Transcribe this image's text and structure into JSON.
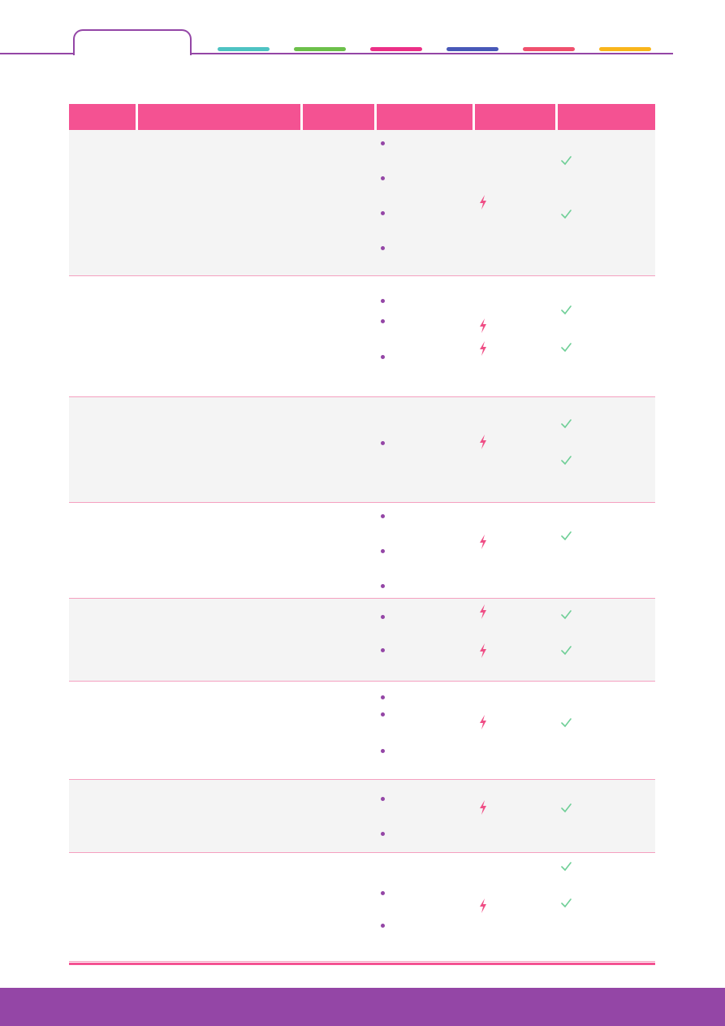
{
  "colors": {
    "purple": "#9446a6",
    "header_pink": "#f45292",
    "row_divider": "#f4a0c0",
    "row_shade": "#f4f4f4",
    "bolt": "#ef4f86",
    "check": "#6fcf97",
    "tab_colors": [
      "#4ec3c3",
      "#6cc04a",
      "#ec2f87",
      "#4858b8",
      "#f0506e",
      "#f9b51b"
    ]
  },
  "icons": {
    "bullet": "bullet-dot-icon",
    "bolt": "lightning-bolt-icon",
    "check": "checkmark-icon"
  },
  "table": {
    "headers": [
      "",
      "",
      "",
      "",
      "",
      ""
    ],
    "rows": [
      {
        "shaded": true,
        "bullets": 4,
        "bolts": 1,
        "checks": 2
      },
      {
        "shaded": false,
        "bullets": 3,
        "bolts": 2,
        "checks": 2
      },
      {
        "shaded": true,
        "bullets": 1,
        "bolts": 1,
        "checks": 2
      },
      {
        "shaded": false,
        "bullets": 3,
        "bolts": 1,
        "checks": 1
      },
      {
        "shaded": true,
        "bullets": 2,
        "bolts": 2,
        "checks": 2
      },
      {
        "shaded": false,
        "bullets": 3,
        "bolts": 1,
        "checks": 1
      },
      {
        "shaded": true,
        "bullets": 2,
        "bolts": 1,
        "checks": 1
      },
      {
        "shaded": false,
        "bullets": 2,
        "bolts": 1,
        "checks": 2
      }
    ]
  }
}
